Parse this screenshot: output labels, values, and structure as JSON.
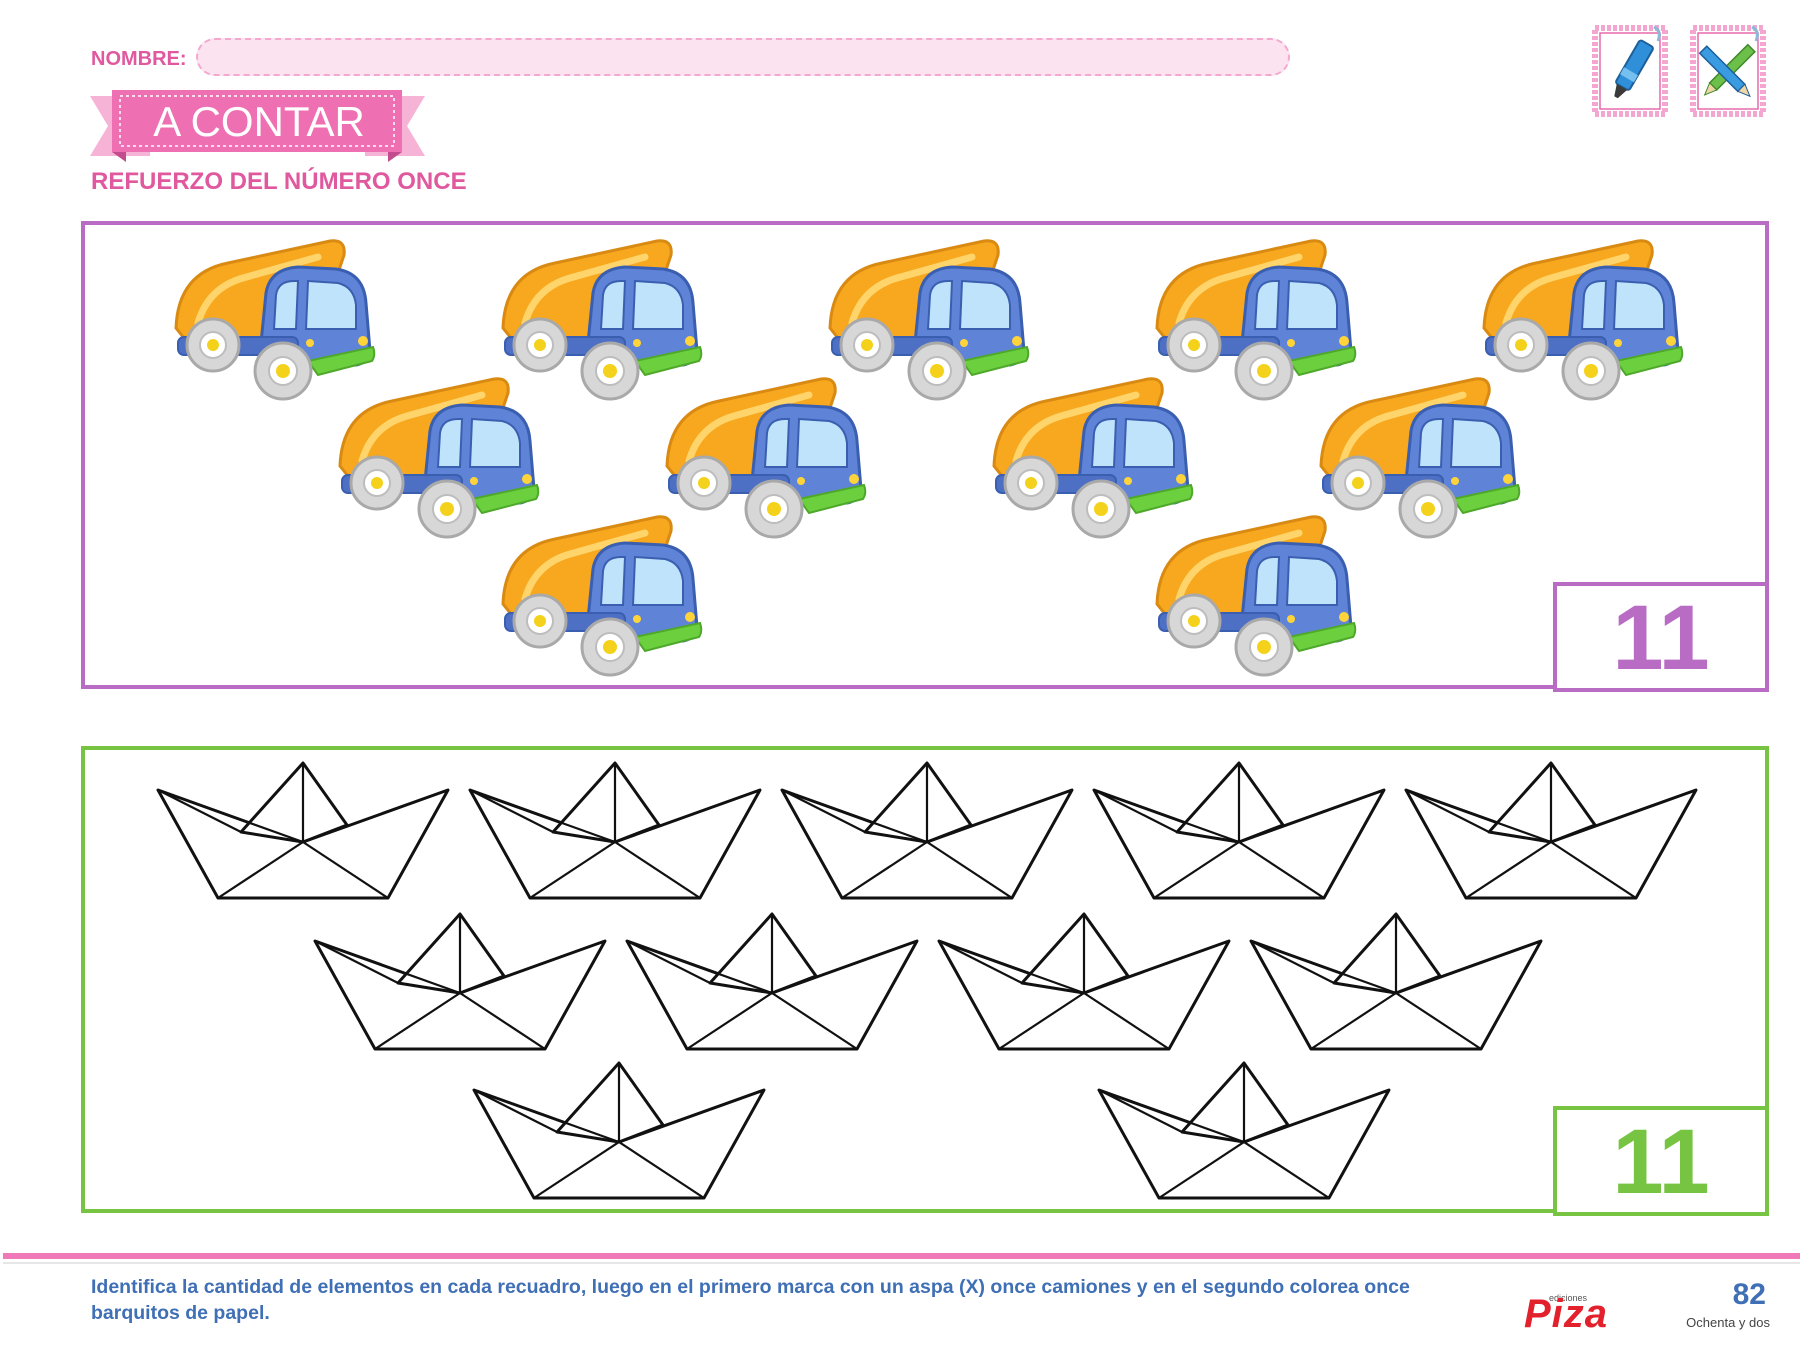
{
  "header": {
    "name_label": "NOMBRE:",
    "title": "A CONTAR",
    "subtitle": "REFUERZO DEL NÚMERO ONCE",
    "tools": [
      "marker-icon",
      "pencils-icon"
    ]
  },
  "truck_panel": {
    "count_label": "11",
    "item_icon": "dump-truck-icon",
    "item_count": 11
  },
  "boat_panel": {
    "count_label": "11",
    "item_icon": "paper-boat-icon",
    "item_count": 11
  },
  "footer": {
    "instructions": "Identifica la cantidad de elementos en cada recuadro, luego en el primero marca con un aspa (X) once camiones y en el segundo colorea once barquitos de papel.",
    "publisher_small": "ediciones",
    "publisher": "Piza",
    "page_number": "82",
    "page_words": "Ochenta y dos"
  },
  "colors": {
    "accent_pink": "#e0589e",
    "truck_frame": "#b86cc4",
    "boat_frame": "#76c442",
    "instruction_text": "#3f6fb5"
  }
}
